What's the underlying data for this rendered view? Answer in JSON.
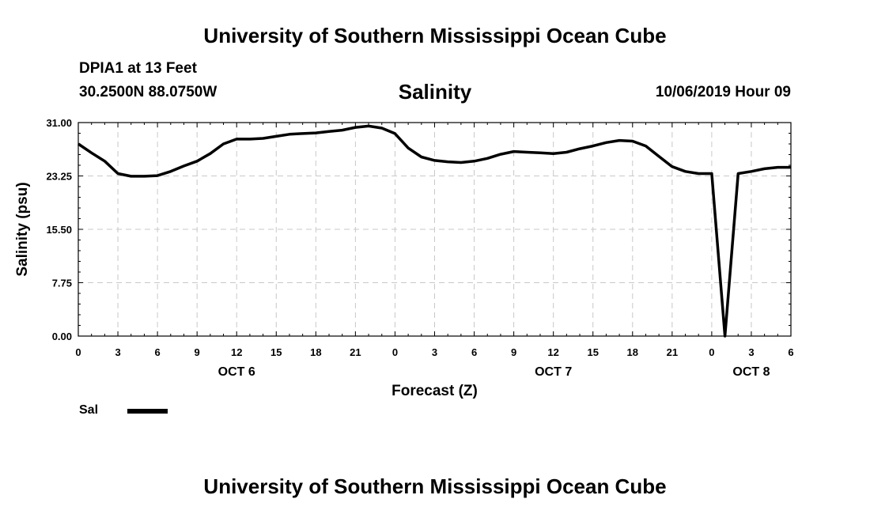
{
  "header": {
    "title": "University of Southern Mississippi Ocean Cube",
    "station": "DPIA1 at 13 Feet",
    "coords": "30.2500N 88.0750W",
    "timestamp": "10/06/2019 Hour 09"
  },
  "footer": {
    "title": "University of Southern Mississippi Ocean Cube"
  },
  "chart_data": {
    "type": "line",
    "title": "Salinity",
    "xlabel": "Forecast (Z)",
    "ylabel": "Salinity (psu)",
    "ylim": [
      0,
      31
    ],
    "xlim": [
      0,
      54
    ],
    "y_ticks": [
      "0.00",
      "7.75",
      "15.50",
      "23.25",
      "31.00"
    ],
    "x_ticks": [
      {
        "x": 0,
        "label": "0"
      },
      {
        "x": 3,
        "label": "3"
      },
      {
        "x": 6,
        "label": "6"
      },
      {
        "x": 9,
        "label": "9"
      },
      {
        "x": 12,
        "label": "12"
      },
      {
        "x": 15,
        "label": "15"
      },
      {
        "x": 18,
        "label": "18"
      },
      {
        "x": 21,
        "label": "21"
      },
      {
        "x": 24,
        "label": "0"
      },
      {
        "x": 27,
        "label": "3"
      },
      {
        "x": 30,
        "label": "6"
      },
      {
        "x": 33,
        "label": "9"
      },
      {
        "x": 36,
        "label": "12"
      },
      {
        "x": 39,
        "label": "15"
      },
      {
        "x": 42,
        "label": "18"
      },
      {
        "x": 45,
        "label": "21"
      },
      {
        "x": 48,
        "label": "0"
      },
      {
        "x": 51,
        "label": "3"
      },
      {
        "x": 54,
        "label": "6"
      }
    ],
    "date_labels": [
      {
        "x": 12,
        "label": "OCT 6"
      },
      {
        "x": 36,
        "label": "OCT 7"
      },
      {
        "x": 51,
        "label": "OCT 8"
      }
    ],
    "grid": true,
    "legend_position": "bottom-left",
    "series": [
      {
        "name": "Sal",
        "color": "#000000",
        "x": [
          0,
          1,
          2,
          3,
          4,
          5,
          6,
          7,
          8,
          9,
          10,
          11,
          12,
          13,
          14,
          15,
          16,
          17,
          18,
          19,
          20,
          21,
          22,
          23,
          24,
          25,
          26,
          27,
          28,
          29,
          30,
          31,
          32,
          33,
          34,
          35,
          36,
          37,
          38,
          39,
          40,
          41,
          42,
          43,
          44,
          45,
          46,
          47,
          48,
          49,
          50,
          51,
          52,
          53,
          54
        ],
        "values": [
          27.9,
          26.6,
          25.4,
          23.6,
          23.2,
          23.2,
          23.3,
          23.9,
          24.7,
          25.4,
          26.5,
          27.9,
          28.6,
          28.6,
          28.7,
          29.0,
          29.3,
          29.4,
          29.5,
          29.7,
          29.9,
          30.3,
          30.5,
          30.2,
          29.4,
          27.3,
          26.0,
          25.5,
          25.3,
          25.2,
          25.4,
          25.8,
          26.4,
          26.8,
          26.7,
          26.6,
          26.5,
          26.7,
          27.2,
          27.6,
          28.1,
          28.4,
          28.3,
          27.6,
          26.1,
          24.6,
          23.9,
          23.6,
          23.6,
          0.0,
          23.6,
          23.9,
          24.3,
          24.5,
          24.5
        ]
      }
    ]
  }
}
